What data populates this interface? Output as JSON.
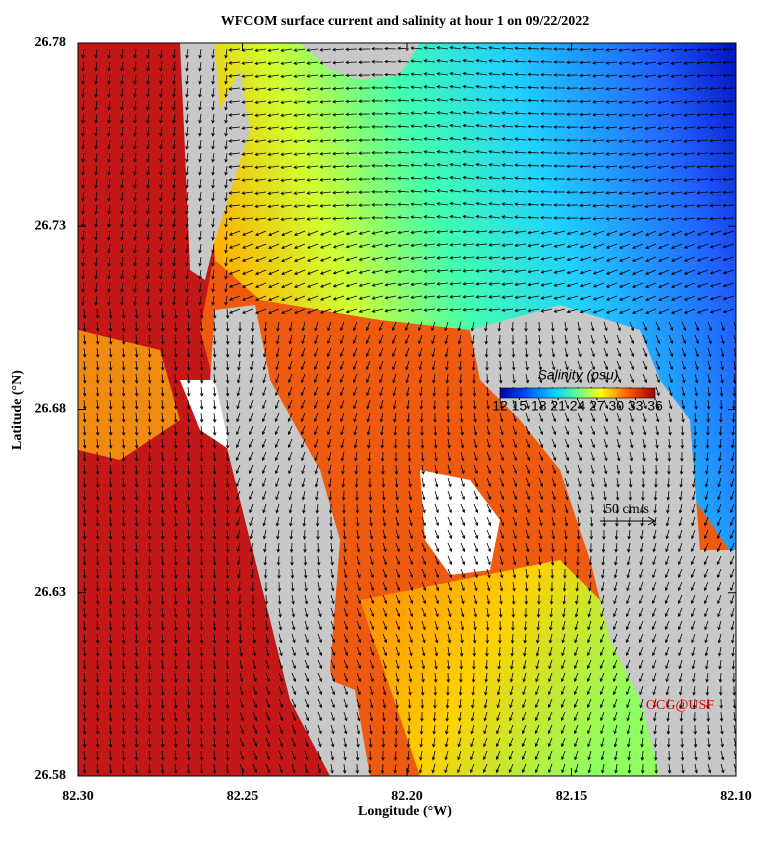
{
  "title": "WFCOM surface current and salinity at hour 1 on 09/22/2022",
  "x_axis": {
    "label": "Longitude (°W)",
    "lim": [
      82.3,
      82.1
    ],
    "ticks": [
      {
        "value": 82.3,
        "label": "82.30"
      },
      82.25,
      {
        "value": 82.2,
        "label": "82.20"
      },
      82.15,
      {
        "value": 82.1,
        "label": "82.10"
      }
    ]
  },
  "y_axis": {
    "label": "Latitude (°N)",
    "lim": [
      26.58,
      26.78
    ],
    "ticks": [
      26.58,
      26.63,
      26.68,
      26.73,
      26.78
    ]
  },
  "colorbar": {
    "title": "Salinity (psu)",
    "lim": [
      12,
      36
    ],
    "ticks": [
      12,
      15,
      18,
      21,
      24,
      27,
      30,
      33,
      36
    ]
  },
  "scale_arrow": {
    "label": "50 cm/s"
  },
  "credit": "OCG@USF"
}
